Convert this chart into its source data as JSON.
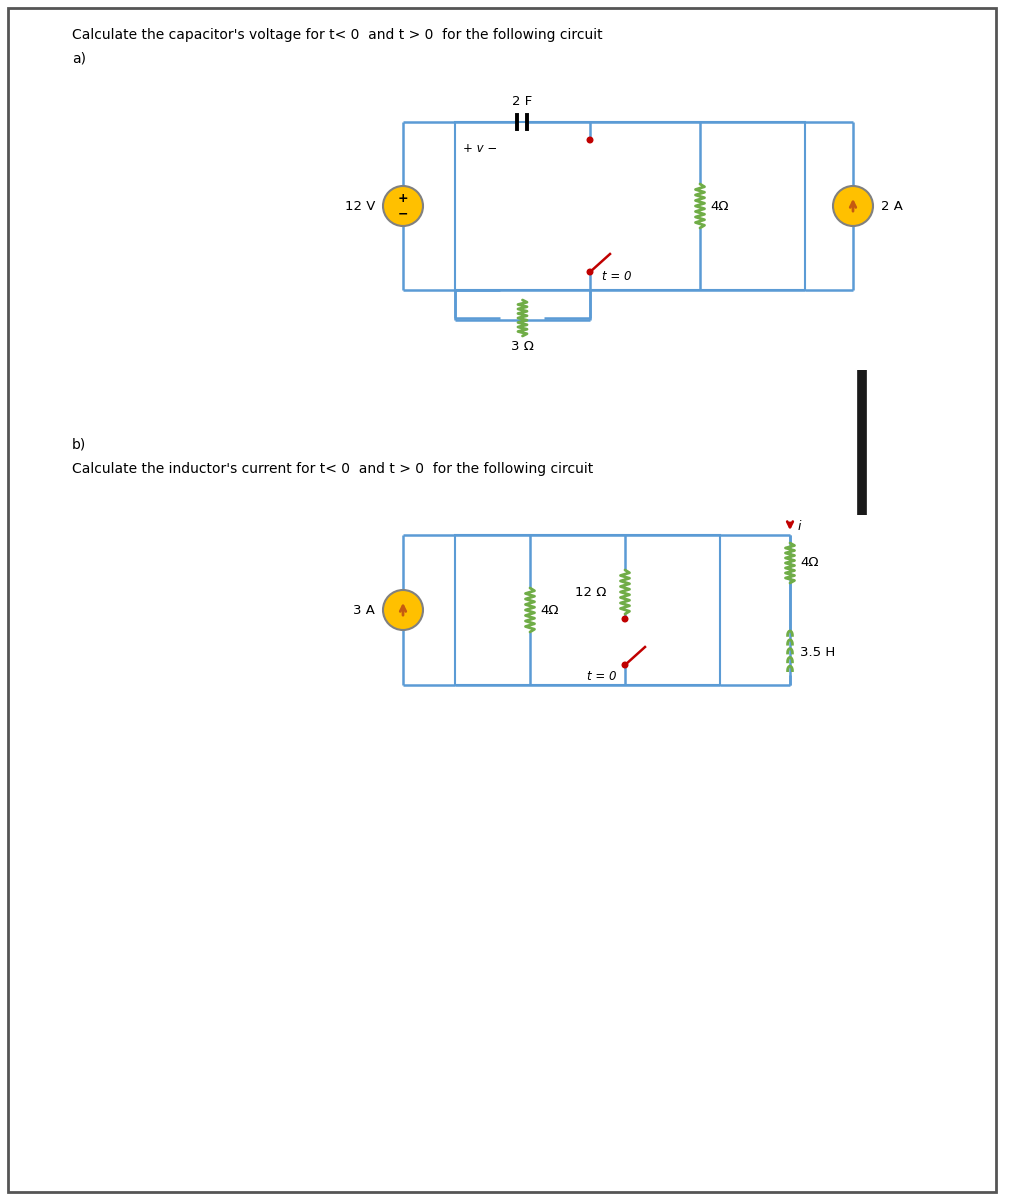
{
  "bg_color": "#ffffff",
  "title_a": "Calculate the capacitor's voltage for t< 0  and t > 0  for the following circuit",
  "label_a": "a)",
  "label_b": "b)",
  "title_b": "Calculate the inductor's current for t< 0  and t > 0  for the following circuit",
  "cap_label": "2 F",
  "res3_label": "3 Ω",
  "res4a_label": "4Ω",
  "sw_a_label": "t = 0",
  "vs_label": "12 V",
  "cs2_label": "2 A",
  "pv_label": "+ v −",
  "cs3_label": "3 A",
  "res4b_label": "4Ω",
  "res12_label": "12 Ω",
  "res4c_label": "4Ω",
  "ind_label": "3.5 H",
  "sw_b_label": "t = 0",
  "i_label": "i",
  "wire_color": "#5b9bd5",
  "res_color": "#70ad47",
  "sw_color": "#c00000",
  "src_fill": "#ffc000",
  "src_stroke": "#808080",
  "ind_color": "#70ad47",
  "txt_color": "#000000",
  "thick_line_color": "#1a1a1a",
  "border_color": "#555555"
}
